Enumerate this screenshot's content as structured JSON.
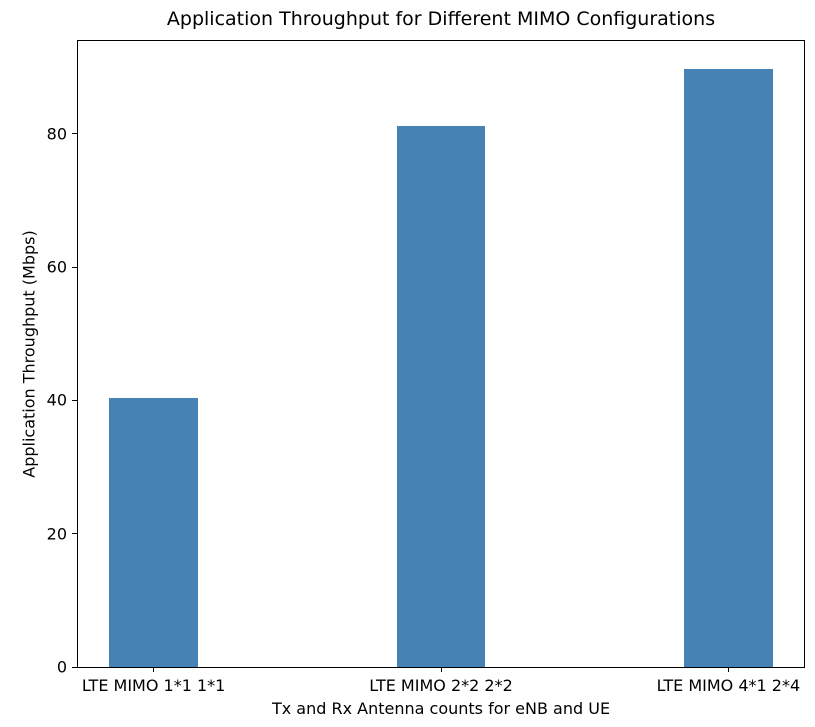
{
  "chart_data": {
    "type": "bar",
    "title": "Application Throughput for Different MIMO Configurations",
    "xlabel": "Tx and Rx Antenna counts for eNB and UE",
    "ylabel": "Application Throughput (Mbps)",
    "categories": [
      "LTE MIMO 1*1 1*1",
      "LTE MIMO 2*2 2*2",
      "LTE MIMO 4*1 2*4"
    ],
    "values": [
      40.3,
      81.2,
      89.7
    ],
    "yticks": [
      0,
      20,
      40,
      60,
      80
    ],
    "ylim": [
      0,
      93.9
    ],
    "xlim": [
      -0.263,
      2.263
    ],
    "bar_width_units": 0.309,
    "bar_color": "#4682b4",
    "axis_color": "#000000",
    "background_color": "#ffffff",
    "grid": false,
    "legend": null
  }
}
